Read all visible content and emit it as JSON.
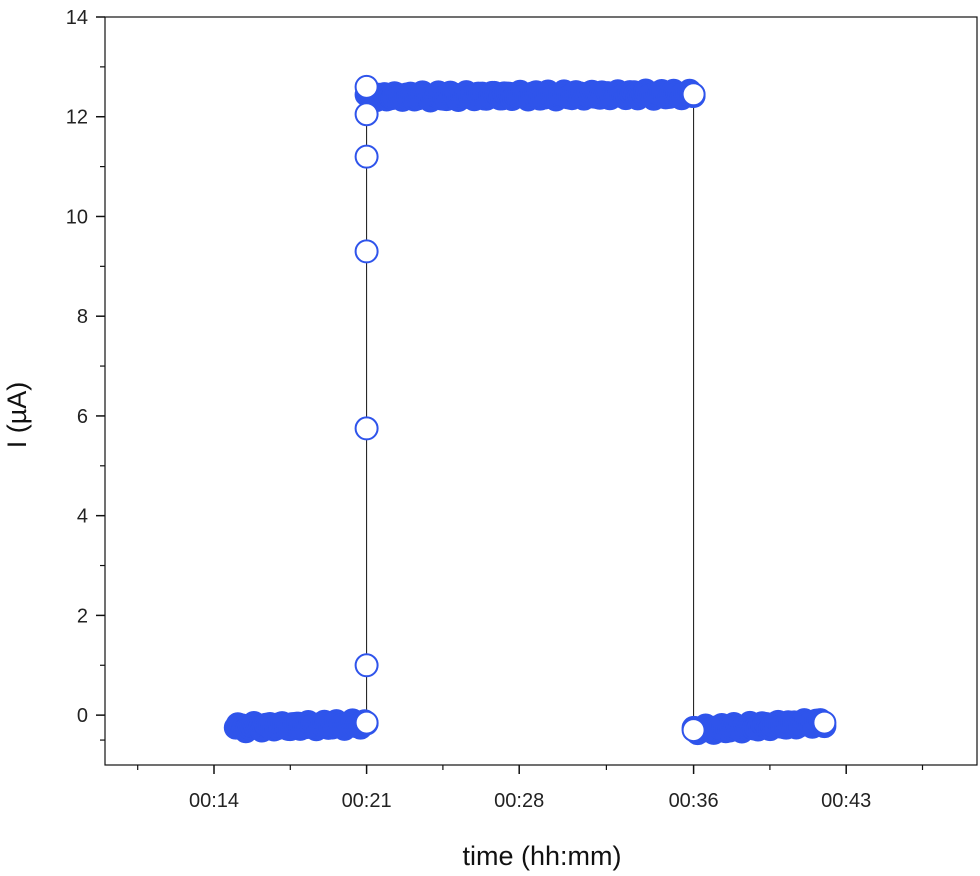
{
  "chart_data": {
    "type": "scatter",
    "title": "",
    "xlabel": "time (hh:mm)",
    "ylabel": "I (µA)",
    "xlim": [
      "00:09",
      "00:49"
    ],
    "ylim": [
      -1,
      14
    ],
    "x_ticks": [
      "00:14",
      "00:21",
      "00:28",
      "00:36",
      "00:43"
    ],
    "y_ticks": [
      0,
      2,
      4,
      6,
      8,
      10,
      12,
      14
    ],
    "grid": false,
    "legend": "none",
    "marker": "open-circle",
    "line": "thin connecting line",
    "colors": {
      "marker": "#2f54eb",
      "line": "#111111",
      "axis": "#111111"
    },
    "series": [
      {
        "segments": [
          {
            "x_start": "00:15",
            "x_end": "00:21",
            "y_start": -0.25,
            "y_end": -0.18
          },
          {
            "x_start": "00:21",
            "x_end": "00:36",
            "y_start": 12.4,
            "y_end": 12.45
          },
          {
            "x_start": "00:36",
            "x_end": "00:42",
            "y_start": -0.3,
            "y_end": -0.15
          }
        ],
        "transition_points": [
          {
            "x": "00:21",
            "y": -0.15
          },
          {
            "x": "00:21",
            "y": 1.0
          },
          {
            "x": "00:21",
            "y": 5.75
          },
          {
            "x": "00:21",
            "y": 9.3
          },
          {
            "x": "00:21",
            "y": 11.2
          },
          {
            "x": "00:21",
            "y": 12.05
          },
          {
            "x": "00:21",
            "y": 12.6
          },
          {
            "x": "00:36",
            "y": 12.45
          },
          {
            "x": "00:36",
            "y": -0.3
          },
          {
            "x": "00:42",
            "y": -0.15
          }
        ]
      }
    ]
  }
}
